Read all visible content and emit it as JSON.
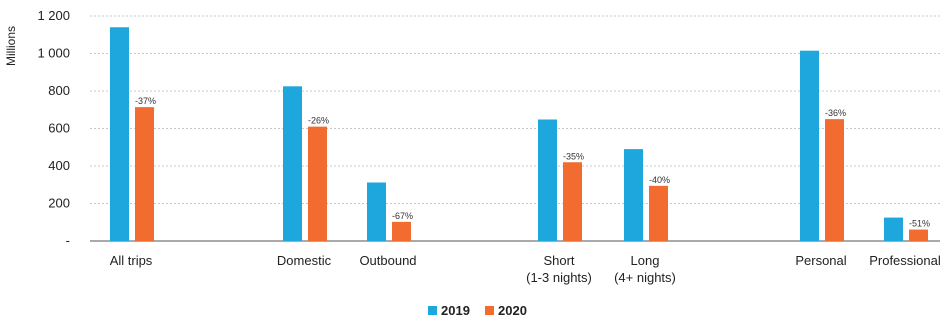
{
  "chart_data": {
    "type": "bar",
    "title": "",
    "ylabel": "Millions",
    "xlabel": "",
    "ylim": [
      0,
      1200
    ],
    "yticks": [
      {
        "value": 0,
        "label": "-"
      },
      {
        "value": 200,
        "label": "200"
      },
      {
        "value": 400,
        "label": "400"
      },
      {
        "value": 600,
        "label": "600"
      },
      {
        "value": 800,
        "label": "800"
      },
      {
        "value": 1000,
        "label": "1 000"
      },
      {
        "value": 1200,
        "label": "1 200"
      }
    ],
    "grid": "horizontal dotted",
    "legend_position": "bottom-center",
    "categories": [
      {
        "label_lines": [
          "All trips"
        ]
      },
      {
        "label_lines": [
          "Domestic"
        ]
      },
      {
        "label_lines": [
          "Outbound"
        ]
      },
      {
        "label_lines": [
          "Short",
          "(1-3 nights)"
        ]
      },
      {
        "label_lines": [
          "Long",
          "(4+ nights)"
        ]
      },
      {
        "label_lines": [
          "Personal"
        ]
      },
      {
        "label_lines": [
          "Professional"
        ]
      }
    ],
    "series": [
      {
        "name": "2019",
        "color": "#1ea7dc",
        "values": [
          1140,
          825,
          312,
          648,
          490,
          1015,
          125
        ]
      },
      {
        "name": "2020",
        "color": "#f26b2f",
        "values": [
          714,
          610,
          102,
          420,
          294,
          650,
          61
        ]
      }
    ],
    "change_labels": [
      "-37%",
      "-26%",
      "-67%",
      "-35%",
      "-40%",
      "-36%",
      "-51%"
    ]
  }
}
